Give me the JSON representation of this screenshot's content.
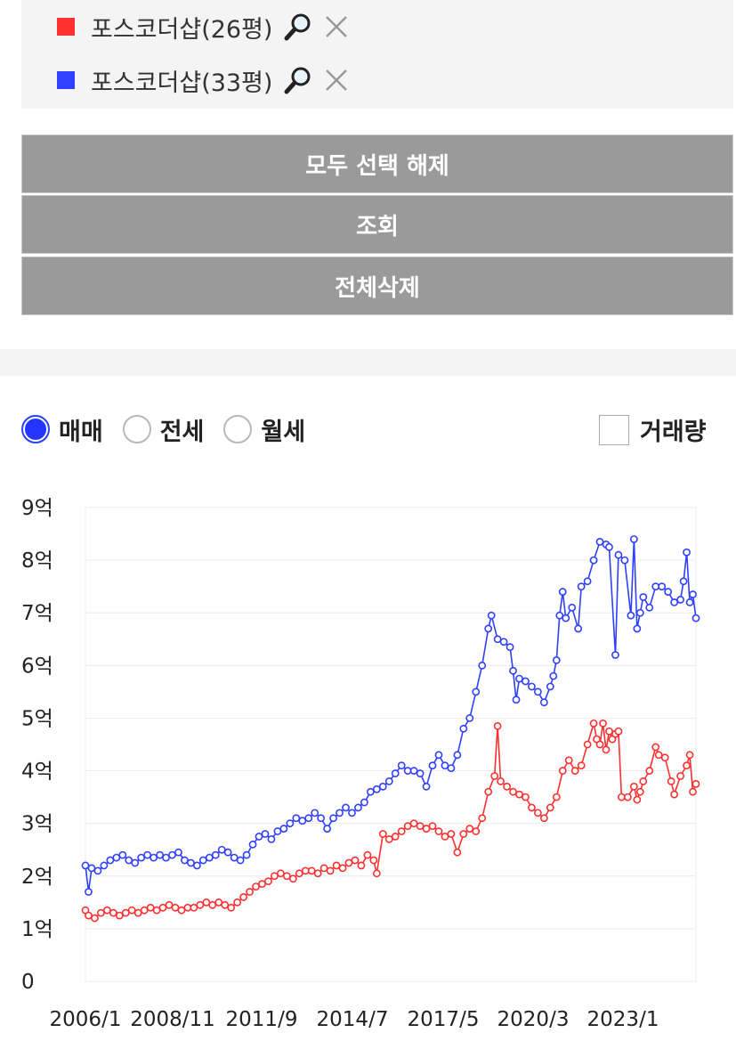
{
  "legend": {
    "items": [
      {
        "name": "포스코더샵(26평)",
        "color": "#ff3030",
        "search_icon": "magnifier-icon",
        "remove_icon": "close-icon"
      },
      {
        "name": "포스코더샵(33평)",
        "color": "#3040ff",
        "search_icon": "magnifier-icon",
        "remove_icon": "close-icon"
      }
    ]
  },
  "buttons": {
    "deselect_all": "모두 선택 해제",
    "search": "조회",
    "delete_all": "전체삭제"
  },
  "trade_type": {
    "options": [
      {
        "label": "매매",
        "checked": true
      },
      {
        "label": "전세",
        "checked": false
      },
      {
        "label": "월세",
        "checked": false
      }
    ],
    "volume_label": "거래량",
    "volume_checked": false
  },
  "chart_data": {
    "type": "line",
    "x_ticks": [
      "2006/1",
      "2008/11",
      "2011/9",
      "2014/7",
      "2017/5",
      "2020/3",
      "2023/1"
    ],
    "y_ticks": [
      "0",
      "1억",
      "2억",
      "3억",
      "4억",
      "5억",
      "6억",
      "7억",
      "8억",
      "9억"
    ],
    "ylim": [
      0,
      9
    ],
    "xlim": [
      2006.0,
      2025.7
    ],
    "grid": true,
    "y_unit": "억",
    "series": [
      {
        "name": "포스코더샵(33평)",
        "color": "#3040ff",
        "points": [
          [
            2006.0,
            2.2
          ],
          [
            2006.1,
            1.7
          ],
          [
            2006.2,
            2.15
          ],
          [
            2006.4,
            2.1
          ],
          [
            2006.6,
            2.2
          ],
          [
            2006.8,
            2.3
          ],
          [
            2007.0,
            2.35
          ],
          [
            2007.2,
            2.4
          ],
          [
            2007.4,
            2.3
          ],
          [
            2007.6,
            2.25
          ],
          [
            2007.8,
            2.35
          ],
          [
            2008.0,
            2.4
          ],
          [
            2008.2,
            2.35
          ],
          [
            2008.4,
            2.4
          ],
          [
            2008.6,
            2.35
          ],
          [
            2008.8,
            2.4
          ],
          [
            2009.0,
            2.45
          ],
          [
            2009.2,
            2.3
          ],
          [
            2009.4,
            2.25
          ],
          [
            2009.6,
            2.2
          ],
          [
            2009.8,
            2.3
          ],
          [
            2010.0,
            2.35
          ],
          [
            2010.2,
            2.4
          ],
          [
            2010.4,
            2.5
          ],
          [
            2010.6,
            2.45
          ],
          [
            2010.8,
            2.35
          ],
          [
            2011.0,
            2.3
          ],
          [
            2011.2,
            2.4
          ],
          [
            2011.4,
            2.6
          ],
          [
            2011.6,
            2.75
          ],
          [
            2011.8,
            2.8
          ],
          [
            2012.0,
            2.7
          ],
          [
            2012.2,
            2.85
          ],
          [
            2012.4,
            2.9
          ],
          [
            2012.6,
            3.0
          ],
          [
            2012.8,
            3.1
          ],
          [
            2013.0,
            3.05
          ],
          [
            2013.2,
            3.1
          ],
          [
            2013.4,
            3.2
          ],
          [
            2013.6,
            3.1
          ],
          [
            2013.8,
            2.9
          ],
          [
            2014.0,
            3.1
          ],
          [
            2014.2,
            3.2
          ],
          [
            2014.4,
            3.3
          ],
          [
            2014.6,
            3.2
          ],
          [
            2014.8,
            3.3
          ],
          [
            2015.0,
            3.4
          ],
          [
            2015.2,
            3.6
          ],
          [
            2015.4,
            3.65
          ],
          [
            2015.6,
            3.7
          ],
          [
            2015.8,
            3.8
          ],
          [
            2016.0,
            3.95
          ],
          [
            2016.2,
            4.1
          ],
          [
            2016.4,
            4.0
          ],
          [
            2016.6,
            4.0
          ],
          [
            2016.8,
            3.95
          ],
          [
            2017.0,
            3.7
          ],
          [
            2017.2,
            4.1
          ],
          [
            2017.4,
            4.3
          ],
          [
            2017.6,
            4.1
          ],
          [
            2017.8,
            4.05
          ],
          [
            2018.0,
            4.3
          ],
          [
            2018.2,
            4.8
          ],
          [
            2018.4,
            5.0
          ],
          [
            2018.6,
            5.5
          ],
          [
            2018.8,
            6.0
          ],
          [
            2019.0,
            6.7
          ],
          [
            2019.1,
            6.95
          ],
          [
            2019.3,
            6.5
          ],
          [
            2019.5,
            6.45
          ],
          [
            2019.7,
            6.35
          ],
          [
            2019.8,
            5.9
          ],
          [
            2019.9,
            5.35
          ],
          [
            2020.0,
            5.75
          ],
          [
            2020.2,
            5.7
          ],
          [
            2020.4,
            5.6
          ],
          [
            2020.6,
            5.5
          ],
          [
            2020.8,
            5.3
          ],
          [
            2021.0,
            5.6
          ],
          [
            2021.1,
            5.8
          ],
          [
            2021.2,
            6.1
          ],
          [
            2021.3,
            6.95
          ],
          [
            2021.4,
            7.4
          ],
          [
            2021.5,
            6.9
          ],
          [
            2021.7,
            7.1
          ],
          [
            2021.9,
            6.7
          ],
          [
            2022.0,
            7.5
          ],
          [
            2022.2,
            7.6
          ],
          [
            2022.4,
            8.0
          ],
          [
            2022.6,
            8.35
          ],
          [
            2022.8,
            8.3
          ],
          [
            2022.9,
            8.25
          ],
          [
            2023.1,
            6.2
          ],
          [
            2023.2,
            8.1
          ],
          [
            2023.4,
            8.0
          ],
          [
            2023.6,
            6.95
          ],
          [
            2023.7,
            8.4
          ],
          [
            2023.8,
            6.7
          ],
          [
            2023.9,
            7.0
          ],
          [
            2024.0,
            7.3
          ],
          [
            2024.2,
            7.1
          ],
          [
            2024.4,
            7.5
          ],
          [
            2024.6,
            7.5
          ],
          [
            2024.8,
            7.4
          ],
          [
            2025.0,
            7.2
          ],
          [
            2025.2,
            7.25
          ],
          [
            2025.3,
            7.6
          ],
          [
            2025.4,
            8.15
          ],
          [
            2025.5,
            7.2
          ],
          [
            2025.6,
            7.35
          ],
          [
            2025.7,
            6.9
          ]
        ]
      },
      {
        "name": "포스코더샵(26평)",
        "color": "#ff3030",
        "points": [
          [
            2006.0,
            1.35
          ],
          [
            2006.1,
            1.25
          ],
          [
            2006.3,
            1.2
          ],
          [
            2006.5,
            1.3
          ],
          [
            2006.7,
            1.35
          ],
          [
            2006.9,
            1.3
          ],
          [
            2007.1,
            1.25
          ],
          [
            2007.3,
            1.3
          ],
          [
            2007.5,
            1.35
          ],
          [
            2007.7,
            1.3
          ],
          [
            2007.9,
            1.35
          ],
          [
            2008.1,
            1.4
          ],
          [
            2008.3,
            1.35
          ],
          [
            2008.5,
            1.4
          ],
          [
            2008.7,
            1.45
          ],
          [
            2008.9,
            1.4
          ],
          [
            2009.1,
            1.35
          ],
          [
            2009.3,
            1.4
          ],
          [
            2009.5,
            1.4
          ],
          [
            2009.7,
            1.45
          ],
          [
            2009.9,
            1.5
          ],
          [
            2010.1,
            1.45
          ],
          [
            2010.3,
            1.5
          ],
          [
            2010.5,
            1.45
          ],
          [
            2010.7,
            1.4
          ],
          [
            2010.9,
            1.5
          ],
          [
            2011.1,
            1.6
          ],
          [
            2011.3,
            1.7
          ],
          [
            2011.5,
            1.8
          ],
          [
            2011.7,
            1.85
          ],
          [
            2011.9,
            1.9
          ],
          [
            2012.1,
            2.0
          ],
          [
            2012.3,
            2.05
          ],
          [
            2012.5,
            2.0
          ],
          [
            2012.7,
            1.95
          ],
          [
            2012.9,
            2.05
          ],
          [
            2013.1,
            2.1
          ],
          [
            2013.3,
            2.1
          ],
          [
            2013.5,
            2.05
          ],
          [
            2013.7,
            2.15
          ],
          [
            2013.9,
            2.1
          ],
          [
            2014.1,
            2.2
          ],
          [
            2014.3,
            2.15
          ],
          [
            2014.5,
            2.25
          ],
          [
            2014.7,
            2.3
          ],
          [
            2014.9,
            2.2
          ],
          [
            2015.1,
            2.4
          ],
          [
            2015.3,
            2.3
          ],
          [
            2015.4,
            2.05
          ],
          [
            2015.6,
            2.8
          ],
          [
            2015.8,
            2.7
          ],
          [
            2016.0,
            2.75
          ],
          [
            2016.2,
            2.85
          ],
          [
            2016.4,
            2.95
          ],
          [
            2016.6,
            3.0
          ],
          [
            2016.8,
            2.95
          ],
          [
            2017.0,
            2.9
          ],
          [
            2017.2,
            2.95
          ],
          [
            2017.4,
            2.85
          ],
          [
            2017.6,
            2.75
          ],
          [
            2017.8,
            2.8
          ],
          [
            2018.0,
            2.45
          ],
          [
            2018.2,
            2.8
          ],
          [
            2018.4,
            2.9
          ],
          [
            2018.6,
            2.85
          ],
          [
            2018.8,
            3.1
          ],
          [
            2019.0,
            3.6
          ],
          [
            2019.2,
            3.9
          ],
          [
            2019.3,
            4.85
          ],
          [
            2019.4,
            3.8
          ],
          [
            2019.6,
            3.7
          ],
          [
            2019.8,
            3.6
          ],
          [
            2020.0,
            3.55
          ],
          [
            2020.2,
            3.5
          ],
          [
            2020.4,
            3.3
          ],
          [
            2020.6,
            3.2
          ],
          [
            2020.8,
            3.1
          ],
          [
            2021.0,
            3.3
          ],
          [
            2021.2,
            3.5
          ],
          [
            2021.4,
            4.0
          ],
          [
            2021.6,
            4.2
          ],
          [
            2021.8,
            4.0
          ],
          [
            2022.0,
            4.1
          ],
          [
            2022.2,
            4.5
          ],
          [
            2022.4,
            4.9
          ],
          [
            2022.5,
            4.6
          ],
          [
            2022.6,
            4.5
          ],
          [
            2022.7,
            4.9
          ],
          [
            2022.8,
            4.4
          ],
          [
            2022.9,
            4.75
          ],
          [
            2023.0,
            4.6
          ],
          [
            2023.1,
            4.7
          ],
          [
            2023.2,
            4.75
          ],
          [
            2023.3,
            3.5
          ],
          [
            2023.5,
            3.5
          ],
          [
            2023.7,
            3.7
          ],
          [
            2023.8,
            3.45
          ],
          [
            2023.9,
            3.6
          ],
          [
            2024.0,
            3.8
          ],
          [
            2024.2,
            4.0
          ],
          [
            2024.4,
            4.45
          ],
          [
            2024.5,
            4.3
          ],
          [
            2024.7,
            4.25
          ],
          [
            2024.9,
            3.8
          ],
          [
            2025.0,
            3.55
          ],
          [
            2025.2,
            3.9
          ],
          [
            2025.4,
            4.1
          ],
          [
            2025.5,
            4.3
          ],
          [
            2025.6,
            3.6
          ],
          [
            2025.7,
            3.75
          ]
        ]
      }
    ]
  }
}
